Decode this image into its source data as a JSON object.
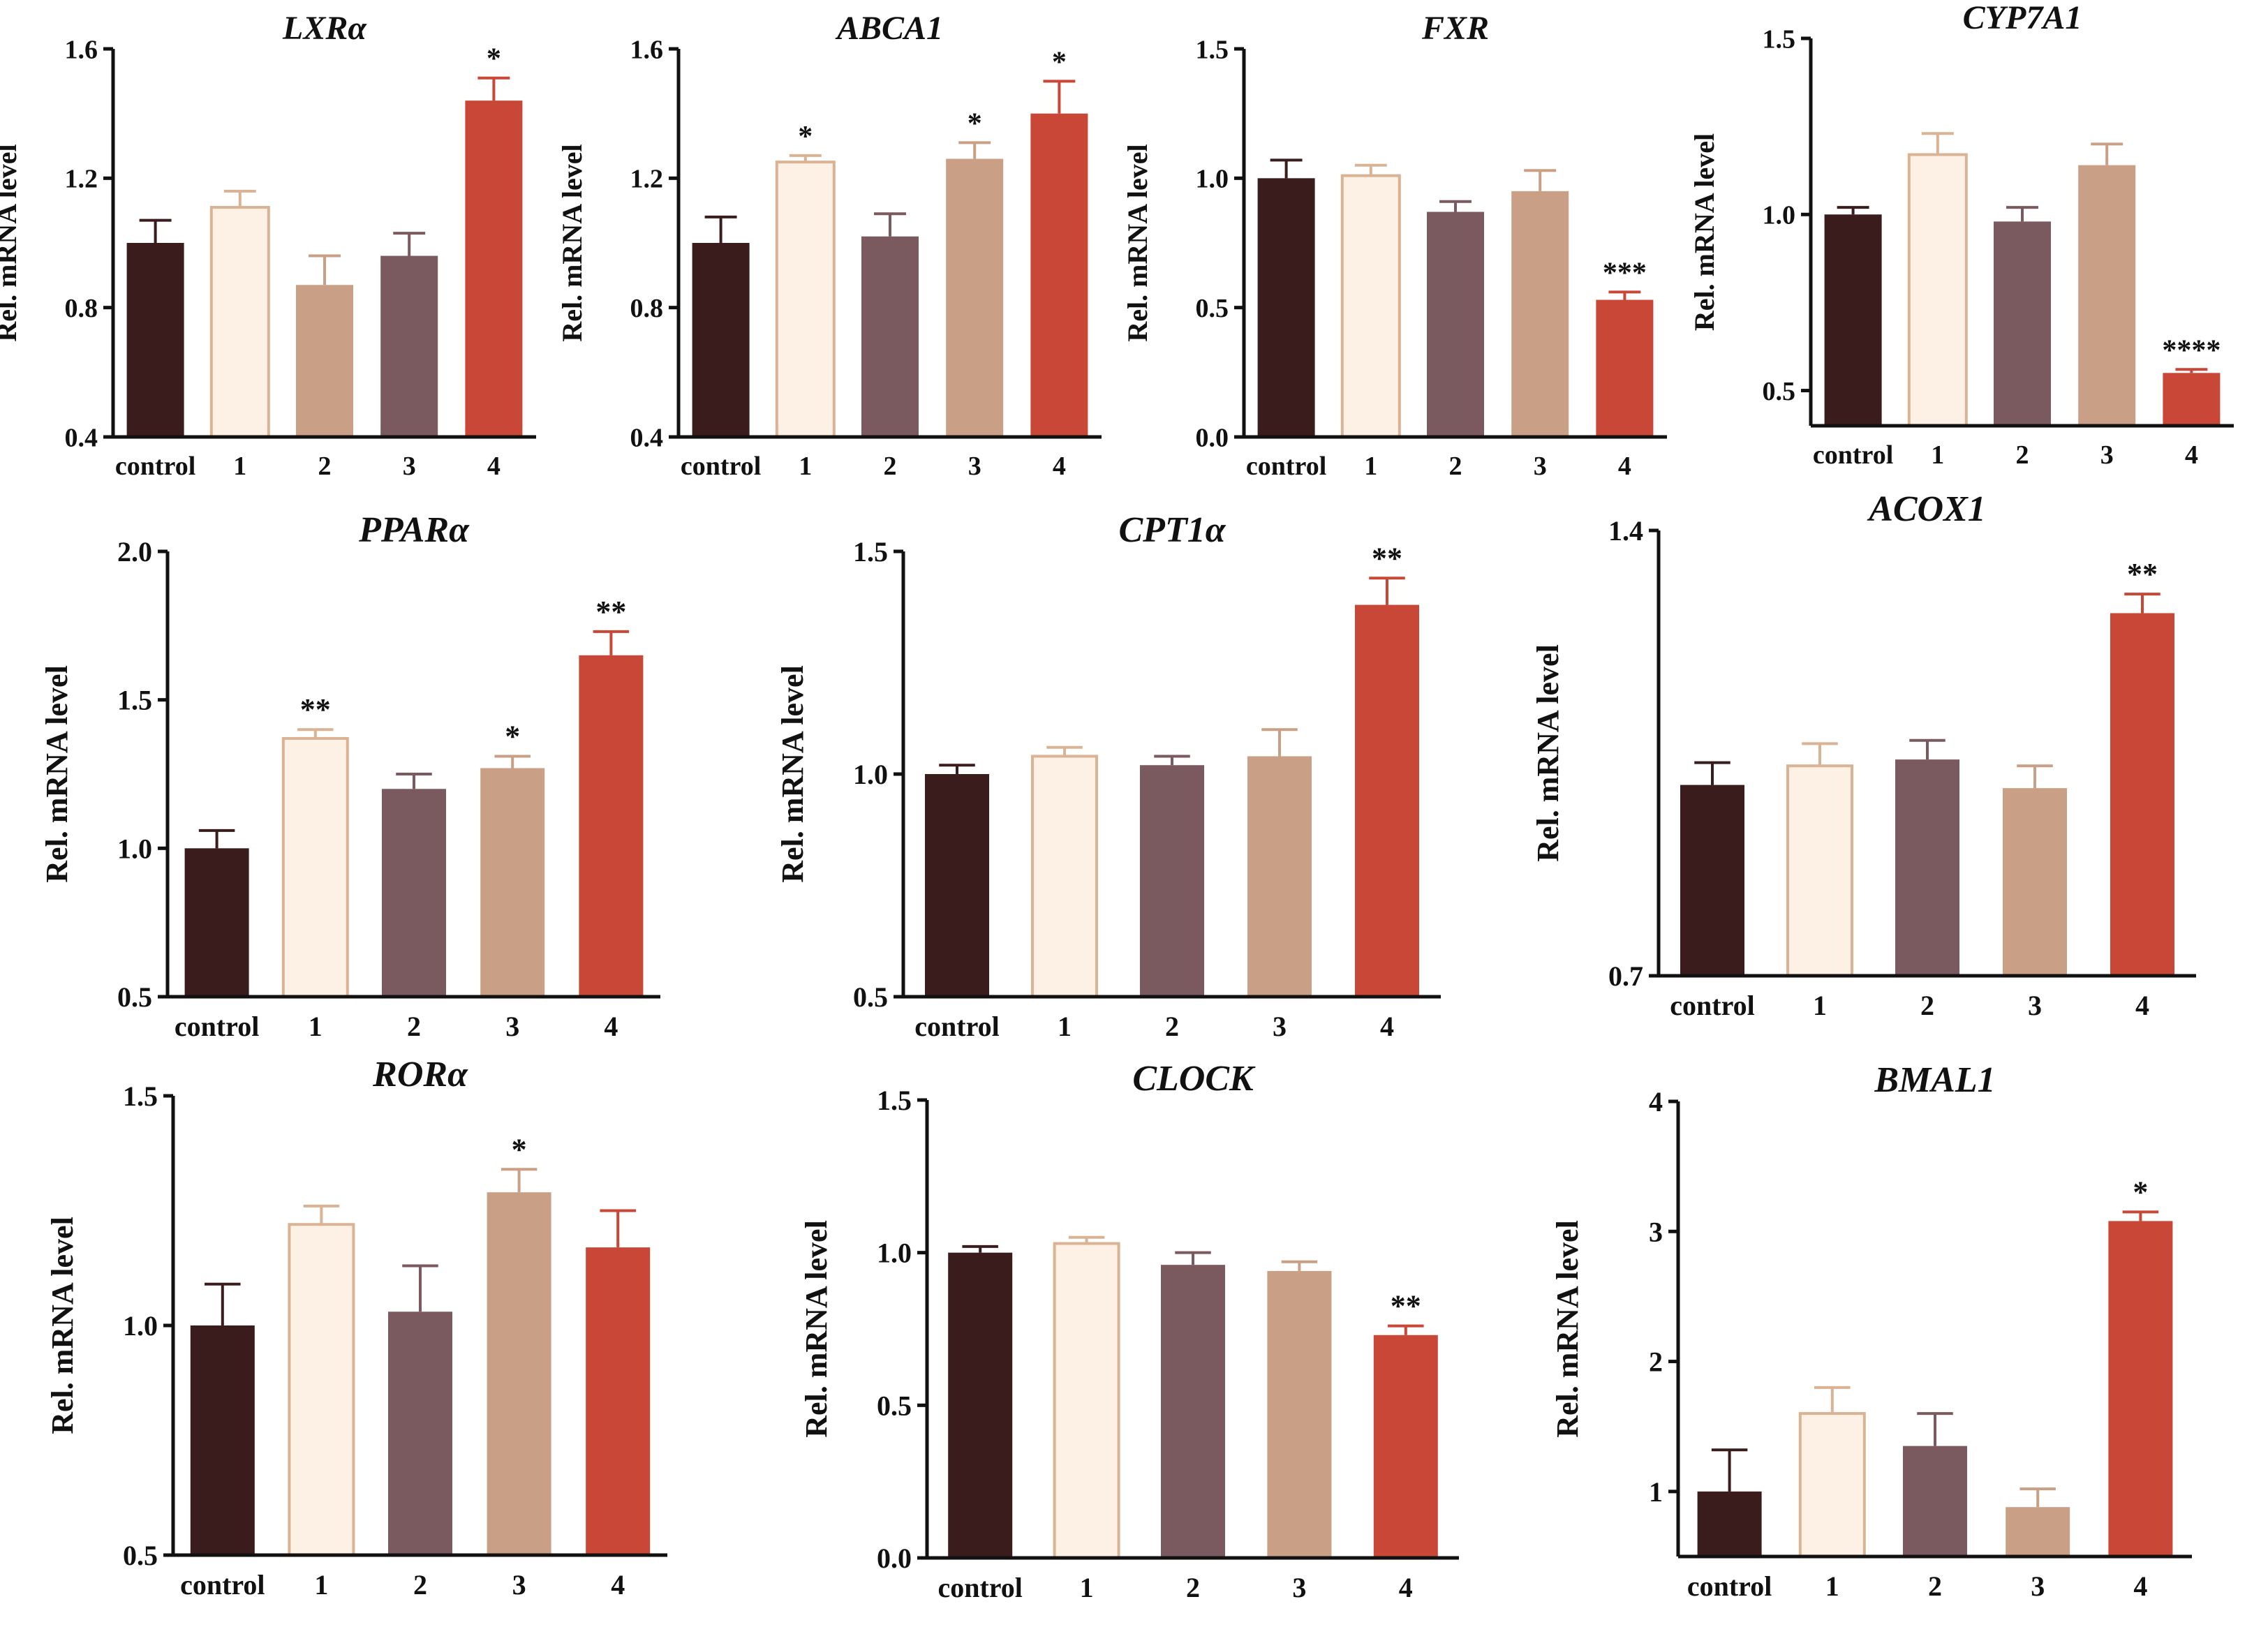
{
  "figure": {
    "description": "Relative mRNA expression of genes across treatment groups"
  },
  "colors": {
    "control": "#3a1c1c",
    "g1": "#fdf1e6",
    "g1_edge": "#d9b394",
    "g2": "#c9a085",
    "g3": "#7a5a5e",
    "g4": "#c84737",
    "axis": "#111111"
  },
  "chart_data": [
    {
      "type": "bar",
      "title": "LXRα",
      "ylabel": "Rel. mRNA level",
      "categories": [
        "control",
        "1",
        "2",
        "3",
        "4"
      ],
      "values": [
        1.0,
        1.11,
        0.87,
        0.96,
        1.44
      ],
      "errors": [
        0.07,
        0.05,
        0.09,
        0.07,
        0.07
      ],
      "significance": [
        "",
        "",
        "",
        "",
        "*"
      ],
      "bar_colors": [
        "control",
        "g1",
        "g2",
        "g3",
        "g4"
      ],
      "ylim": [
        0.4,
        1.6
      ],
      "yticks": [
        0.4,
        0.8,
        1.2,
        1.6
      ],
      "ytick_labels": [
        "0.4",
        "0.8",
        "1.2",
        "1.6"
      ]
    },
    {
      "type": "bar",
      "title": "ABCA1",
      "ylabel": "Rel. mRNA level",
      "categories": [
        "control",
        "1",
        "2",
        "3",
        "4"
      ],
      "values": [
        1.0,
        1.25,
        1.02,
        1.26,
        1.4
      ],
      "errors": [
        0.08,
        0.02,
        0.07,
        0.05,
        0.1
      ],
      "significance": [
        "",
        "*",
        "",
        "*",
        "*"
      ],
      "bar_colors": [
        "control",
        "g1",
        "g3",
        "g2",
        "g4"
      ],
      "ylim": [
        0.4,
        1.6
      ],
      "yticks": [
        0.4,
        0.8,
        1.2,
        1.6
      ],
      "ytick_labels": [
        "0.4",
        "0.8",
        "1.2",
        "1.6"
      ]
    },
    {
      "type": "bar",
      "title": "FXR",
      "ylabel": "Rel. mRNA level",
      "categories": [
        "control",
        "1",
        "2",
        "3",
        "4"
      ],
      "values": [
        1.0,
        1.01,
        0.87,
        0.95,
        0.53
      ],
      "errors": [
        0.07,
        0.04,
        0.04,
        0.08,
        0.03
      ],
      "significance": [
        "",
        "",
        "",
        "",
        "***"
      ],
      "bar_colors": [
        "control",
        "g1",
        "g3",
        "g2",
        "g4"
      ],
      "ylim": [
        0.0,
        1.5
      ],
      "yticks": [
        0.0,
        0.5,
        1.0,
        1.5
      ],
      "ytick_labels": [
        "0.0",
        "0.5",
        "1.0",
        "1.5"
      ]
    },
    {
      "type": "bar",
      "title": "CYP7A1",
      "ylabel": "Rel. mRNA level",
      "categories": [
        "control",
        "1",
        "2",
        "3",
        "4"
      ],
      "values": [
        1.0,
        1.17,
        0.98,
        1.14,
        0.55
      ],
      "errors": [
        0.02,
        0.06,
        0.04,
        0.06,
        0.01
      ],
      "significance": [
        "",
        "",
        "",
        "",
        "****"
      ],
      "bar_colors": [
        "control",
        "g1",
        "g3",
        "g2",
        "g4"
      ],
      "ylim": [
        0.4,
        1.5
      ],
      "yticks": [
        0.5,
        1.0,
        1.5
      ],
      "ytick_labels": [
        "0.5",
        "1.0",
        "1.5"
      ]
    },
    {
      "type": "bar",
      "title": "PPARα",
      "ylabel": "Rel. mRNA level",
      "categories": [
        "control",
        "1",
        "2",
        "3",
        "4"
      ],
      "values": [
        1.0,
        1.37,
        1.2,
        1.27,
        1.65
      ],
      "errors": [
        0.06,
        0.03,
        0.05,
        0.04,
        0.08
      ],
      "significance": [
        "",
        "**",
        "",
        "*",
        "**"
      ],
      "bar_colors": [
        "control",
        "g1",
        "g3",
        "g2",
        "g4"
      ],
      "ylim": [
        0.5,
        2.0
      ],
      "yticks": [
        0.5,
        1.0,
        1.5,
        2.0
      ],
      "ytick_labels": [
        "0.5",
        "1.0",
        "1.5",
        "2.0"
      ]
    },
    {
      "type": "bar",
      "title": "CPT1α",
      "ylabel": "Rel. mRNA level",
      "categories": [
        "control",
        "1",
        "2",
        "3",
        "4"
      ],
      "values": [
        1.0,
        1.04,
        1.02,
        1.04,
        1.38
      ],
      "errors": [
        0.02,
        0.02,
        0.02,
        0.06,
        0.06
      ],
      "significance": [
        "",
        "",
        "",
        "",
        "**"
      ],
      "bar_colors": [
        "control",
        "g1",
        "g3",
        "g2",
        "g4"
      ],
      "ylim": [
        0.5,
        1.5
      ],
      "yticks": [
        0.5,
        1.0,
        1.5
      ],
      "ytick_labels": [
        "0.5",
        "1.0",
        "1.5"
      ]
    },
    {
      "type": "bar",
      "title": "ACOX1",
      "ylabel": "Rel. mRNA level",
      "categories": [
        "control",
        "1",
        "2",
        "3",
        "4"
      ],
      "values": [
        1.0,
        1.03,
        1.04,
        0.995,
        1.27
      ],
      "errors": [
        0.035,
        0.035,
        0.03,
        0.035,
        0.03
      ],
      "significance": [
        "",
        "",
        "",
        "",
        "**"
      ],
      "bar_colors": [
        "control",
        "g1",
        "g3",
        "g2",
        "g4"
      ],
      "ylim": [
        0.7,
        1.4
      ],
      "yticks": [
        0.7,
        1.4
      ],
      "ytick_labels": [
        "0.7",
        "1.4"
      ]
    },
    {
      "type": "bar",
      "title": "RORα",
      "ylabel": "Rel. mRNA level",
      "categories": [
        "control",
        "1",
        "2",
        "3",
        "4"
      ],
      "values": [
        1.0,
        1.22,
        1.03,
        1.29,
        1.17
      ],
      "errors": [
        0.09,
        0.04,
        0.1,
        0.05,
        0.08
      ],
      "significance": [
        "",
        "",
        "",
        "*",
        ""
      ],
      "bar_colors": [
        "control",
        "g1",
        "g3",
        "g2",
        "g4"
      ],
      "ylim": [
        0.5,
        1.5
      ],
      "yticks": [
        0.5,
        1.0,
        1.5
      ],
      "ytick_labels": [
        "0.5",
        "1.0",
        "1.5"
      ]
    },
    {
      "type": "bar",
      "title": "CLOCK",
      "ylabel": "Rel. mRNA level",
      "categories": [
        "control",
        "1",
        "2",
        "3",
        "4"
      ],
      "values": [
        1.0,
        1.03,
        0.96,
        0.94,
        0.73
      ],
      "errors": [
        0.02,
        0.02,
        0.04,
        0.03,
        0.03
      ],
      "significance": [
        "",
        "",
        "",
        "",
        "**"
      ],
      "bar_colors": [
        "control",
        "g1",
        "g3",
        "g2",
        "g4"
      ],
      "ylim": [
        0.0,
        1.5
      ],
      "yticks": [
        0.0,
        0.5,
        1.0,
        1.5
      ],
      "ytick_labels": [
        "0.0",
        "0.5",
        "1.0",
        "1.5"
      ]
    },
    {
      "type": "bar",
      "title": "BMAL1",
      "ylabel": "Rel. mRNA level",
      "categories": [
        "control",
        "1",
        "2",
        "3",
        "4"
      ],
      "values": [
        1.0,
        1.6,
        1.35,
        0.88,
        3.08
      ],
      "errors": [
        0.32,
        0.2,
        0.25,
        0.14,
        0.07
      ],
      "significance": [
        "",
        "",
        "",
        "",
        "*"
      ],
      "bar_colors": [
        "control",
        "g1",
        "g3",
        "g2",
        "g4"
      ],
      "ylim": [
        0.5,
        4.0
      ],
      "yticks": [
        1,
        2,
        3,
        4
      ],
      "ytick_labels": [
        "1",
        "2",
        "3",
        "4"
      ]
    }
  ]
}
